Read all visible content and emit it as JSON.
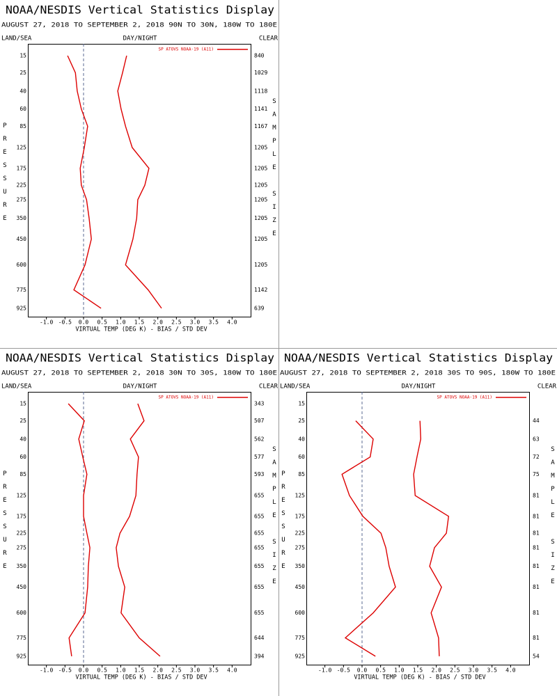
{
  "chart_data": [
    {
      "type": "line",
      "title": "NOAA/NESDIS Vertical Statistics Display",
      "subtitle": "AUGUST 27, 2018 TO SEPTEMBER 2, 2018  90N TO 30N, 180W TO 180E",
      "left_header": "LAND/SEA",
      "center_header": "DAY/NIGHT",
      "right_header": "CLEAR",
      "xlabel": "VIRTUAL TEMP (DEG K) - BIAS / STD DEV",
      "ylabel": "PRESSURE",
      "y2label": "SAMPLE SIZE",
      "xlim": [
        -1.5,
        4.5
      ],
      "xticks": [
        {
          "value": -1,
          "label": "-1.0"
        },
        -0.5,
        {
          "value": 0,
          "label": "0.0"
        },
        0.5,
        {
          "value": 1,
          "label": "1.0"
        },
        1.5,
        {
          "value": 2,
          "label": "2.0"
        },
        2.5,
        {
          "value": 3,
          "label": "3.0"
        },
        3.5,
        {
          "value": 4,
          "label": "4.0"
        }
      ],
      "ylim": [
        10,
        1000
      ],
      "yticks": [
        15,
        25,
        40,
        60,
        85,
        125,
        175,
        225,
        275,
        350,
        450,
        600,
        775,
        925
      ],
      "series": [
        {
          "name": "SP ATOVS NOAA-19 (A11)",
          "color": "#dd0000",
          "values": [
            -0.43,
            -0.22,
            -0.17,
            -0.06,
            0.11,
            0.02,
            -0.09,
            -0.06,
            0.08,
            0.15,
            0.21,
            0.04,
            -0.26,
            0.47
          ],
          "std_dev": [
            1.16,
            1.05,
            0.92,
            1.01,
            1.13,
            1.31,
            1.76,
            1.65,
            1.46,
            1.43,
            1.33,
            1.13,
            1.74,
            2.1
          ]
        }
      ],
      "sample_size": [
        840,
        1029,
        1118,
        1141,
        1167,
        1205,
        1205,
        1205,
        1205,
        1205,
        1205,
        1205,
        1142,
        639
      ]
    },
    {
      "type": "line",
      "title": "NOAA/NESDIS Vertical Statistics Display",
      "subtitle": "AUGUST 27, 2018 TO SEPTEMBER 2, 2018  30N TO 30S, 180W TO 180E",
      "left_header": "LAND/SEA",
      "center_header": "DAY/NIGHT",
      "right_header": "CLEAR",
      "xlabel": "VIRTUAL TEMP (DEG K) - BIAS / STD DEV",
      "ylabel": "PRESSURE",
      "y2label": "SAMPLE SIZE",
      "xlim": [
        -1.5,
        4.5
      ],
      "xticks": [
        {
          "value": -1,
          "label": "-1.0"
        },
        -0.5,
        {
          "value": 0,
          "label": "0.0"
        },
        0.5,
        {
          "value": 1,
          "label": "1.0"
        },
        1.5,
        {
          "value": 2,
          "label": "2.0"
        },
        2.5,
        {
          "value": 3,
          "label": "3.0"
        },
        3.5,
        {
          "value": 4,
          "label": "4.0"
        }
      ],
      "ylim": [
        10,
        1000
      ],
      "yticks": [
        15,
        25,
        40,
        60,
        85,
        125,
        175,
        225,
        275,
        350,
        450,
        600,
        775,
        925
      ],
      "series": [
        {
          "name": "SP ATOVS NOAA-19 (A11)",
          "color": "#dd0000",
          "values": [
            -0.41,
            0.02,
            -0.13,
            -0.02,
            0.09,
            0,
            0,
            0.09,
            0.17,
            0.13,
            0.11,
            0.04,
            -0.39,
            -0.32
          ],
          "std_dev": [
            1.46,
            1.63,
            1.26,
            1.48,
            1.44,
            1.41,
            1.24,
            0.98,
            0.88,
            0.94,
            1.11,
            1.01,
            1.5,
            2.06
          ]
        }
      ],
      "sample_size": [
        343,
        507,
        562,
        577,
        593,
        655,
        655,
        655,
        655,
        655,
        655,
        655,
        644,
        394
      ]
    },
    {
      "type": "line",
      "title": "NOAA/NESDIS Vertical Statistics Display",
      "subtitle": "AUGUST 27, 2018 TO SEPTEMBER 2, 2018  30S TO 90S, 180W TO 180E",
      "left_header": "LAND/SEA",
      "center_header": "DAY/NIGHT",
      "right_header": "CLEAR",
      "xlabel": "VIRTUAL TEMP (DEG K) - BIAS / STD DEV",
      "ylabel": "PRESSURE",
      "y2label": "SAMPLE SIZE",
      "xlim": [
        -1.5,
        4.5
      ],
      "xticks": [
        {
          "value": -1,
          "label": "-1.0"
        },
        -0.5,
        {
          "value": 0,
          "label": "0.0"
        },
        0.5,
        {
          "value": 1,
          "label": "1.0"
        },
        1.5,
        {
          "value": 2,
          "label": "2.0"
        },
        2.5,
        {
          "value": 3,
          "label": "3.0"
        },
        3.5,
        {
          "value": 4,
          "label": "4.0"
        }
      ],
      "ylim": [
        10,
        1000
      ],
      "yticks": [
        15,
        25,
        40,
        60,
        85,
        125,
        175,
        225,
        275,
        350,
        450,
        600,
        775,
        925
      ],
      "series": [
        {
          "name": "SP ATOVS NOAA-19 (A11)",
          "color": "#dd0000",
          "values": [
            null,
            -0.17,
            0.3,
            0.22,
            -0.54,
            -0.34,
            0.02,
            0.51,
            0.64,
            0.73,
            0.9,
            0.3,
            -0.45,
            0.36
          ],
          "std_dev": [
            null,
            1.56,
            1.58,
            1.48,
            1.39,
            1.43,
            2.33,
            2.27,
            1.95,
            1.82,
            2.14,
            1.86,
            2.06,
            2.08
          ]
        }
      ],
      "sample_size": [
        null,
        44,
        63,
        72,
        75,
        81,
        81,
        81,
        81,
        81,
        81,
        81,
        81,
        54
      ]
    }
  ]
}
